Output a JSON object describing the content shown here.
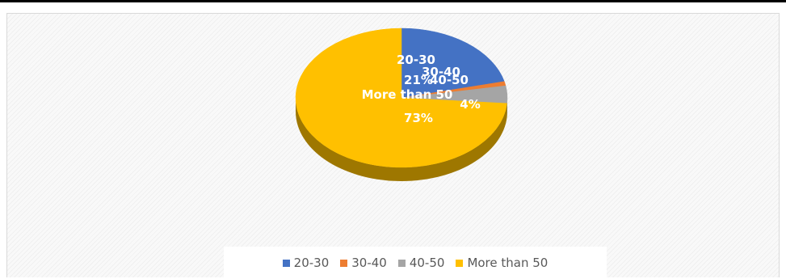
{
  "chart_data": {
    "type": "pie",
    "style": "3d",
    "categories": [
      "20-30",
      "30-40",
      "40-50",
      "More than 50"
    ],
    "values": [
      21,
      1,
      4,
      73
    ],
    "data_labels": [
      "21%",
      "",
      "4%",
      "73%"
    ],
    "colors": [
      "#4472c4",
      "#ed7d31",
      "#a5a5a5",
      "#ffc000"
    ],
    "legend_position": "bottom"
  }
}
